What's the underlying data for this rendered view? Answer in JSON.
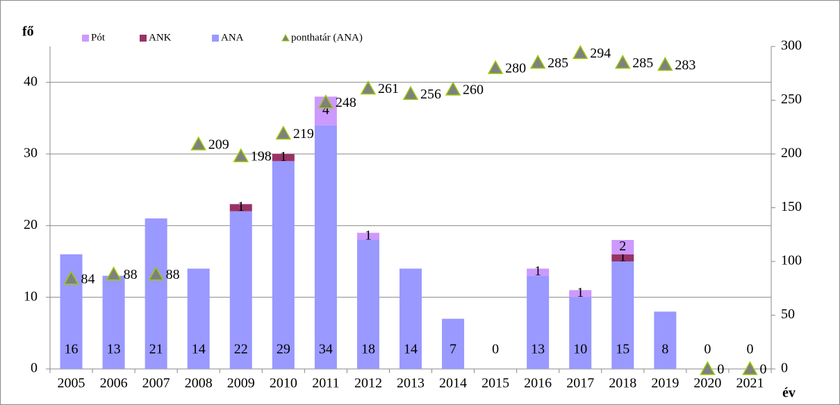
{
  "chart_data": {
    "type": "bar",
    "y_label": "fő",
    "x_label": "év",
    "categories": [
      "2005",
      "2006",
      "2007",
      "2008",
      "2009",
      "2010",
      "2011",
      "2012",
      "2013",
      "2014",
      "2015",
      "2016",
      "2017",
      "2018",
      "2019",
      "2020",
      "2021"
    ],
    "series": [
      {
        "name": "Pót",
        "color": "#cc99ff",
        "values": [
          null,
          null,
          null,
          null,
          null,
          null,
          4,
          1,
          null,
          null,
          null,
          1,
          1,
          2,
          null,
          null,
          null
        ]
      },
      {
        "name": "ANK",
        "color": "#993366",
        "values": [
          null,
          null,
          null,
          null,
          1,
          1,
          null,
          null,
          null,
          null,
          null,
          null,
          null,
          1,
          null,
          null,
          null
        ]
      },
      {
        "name": "ANA",
        "color": "#9999ff",
        "values": [
          16,
          13,
          21,
          14,
          22,
          29,
          34,
          18,
          14,
          7,
          0,
          13,
          10,
          15,
          8,
          0,
          0
        ]
      },
      {
        "name": "ponthatár (ANA)",
        "type": "scatter",
        "axis": "y2",
        "color": "#808080",
        "edge_color": "#99cc00",
        "values": [
          84,
          88,
          88,
          209,
          198,
          219,
          248,
          261,
          256,
          260,
          280,
          285,
          294,
          285,
          283,
          0,
          0
        ]
      }
    ],
    "ylim": [
      0,
      45
    ],
    "yticks": [
      0,
      10,
      20,
      30,
      40
    ],
    "y2lim": [
      0,
      300
    ],
    "y2ticks": [
      0,
      50,
      100,
      150,
      200,
      250,
      300
    ],
    "grid": true,
    "legend": "top"
  }
}
